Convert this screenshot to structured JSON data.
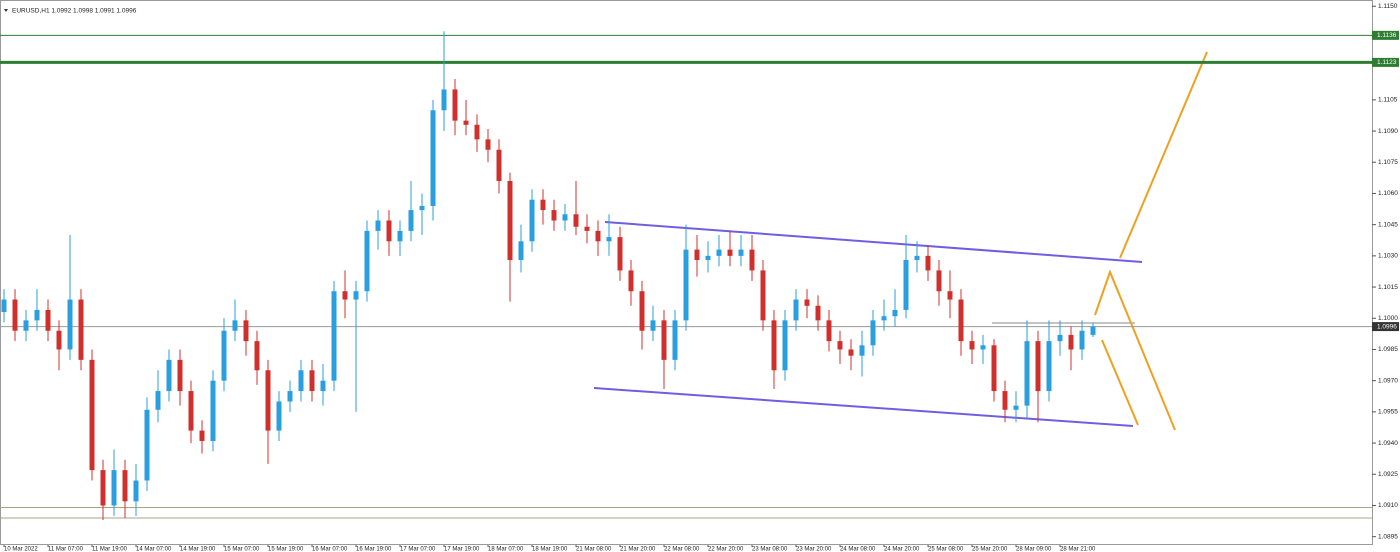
{
  "chart_data": {
    "type": "candlestick",
    "title": "EURUSD,H1  1.0992 1.0998 1.0991 1.0996",
    "categories": [
      "10 Mar 2022",
      null,
      null,
      null,
      "11 Mar 07:00",
      null,
      null,
      null,
      "11 Mar 19:00",
      null,
      null,
      null,
      "14 Mar 07:00",
      null,
      null,
      null,
      "14 Mar 19:00",
      null,
      null,
      null,
      "15 Mar 07:00",
      null,
      null,
      null,
      "15 Mar 19:00",
      null,
      null,
      null,
      "16 Mar 07:00",
      null,
      null,
      null,
      "16 Mar 19:00",
      null,
      null,
      null,
      "17 Mar 07:00",
      null,
      null,
      null,
      "17 Mar 19:00",
      null,
      null,
      null,
      "18 Mar 07:00",
      null,
      null,
      null,
      "18 Mar 19:00",
      null,
      null,
      null,
      "21 Mar 08:00",
      null,
      null,
      null,
      "21 Mar 20:00",
      null,
      null,
      null,
      "22 Mar 08:00",
      null,
      null,
      null,
      "22 Mar 20:00",
      null,
      null,
      null,
      "23 Mar 08:00",
      null,
      null,
      null,
      "23 Mar 20:00",
      null,
      null,
      null,
      "24 Mar 08:00",
      null,
      null,
      null,
      "24 Mar 20:00",
      null,
      null,
      null,
      "25 Mar 08:00",
      null,
      null,
      null,
      "25 Mar 20:00",
      null,
      null,
      null,
      "28 Mar 09:00",
      null,
      null,
      null,
      "28 Mar 21:00",
      null,
      null,
      null
    ],
    "open": [
      1.1003,
      1.1009,
      1.0994,
      1.0999,
      1.1004,
      1.0994,
      1.0985,
      1.1009,
      1.098,
      1.0927,
      1.091,
      1.0927,
      1.0912,
      1.0922,
      1.0956,
      1.0965,
      1.098,
      1.0965,
      1.0946,
      1.0941,
      1.097,
      1.0994,
      1.0999,
      1.0989,
      1.0975,
      1.0946,
      1.096,
      1.0965,
      1.0975,
      1.0965,
      1.097,
      1.1013,
      1.1009,
      1.1013,
      1.1042,
      1.1047,
      1.1037,
      1.1042,
      1.1052,
      1.1054,
      1.11,
      1.111,
      1.1095,
      1.1093,
      1.1086,
      1.1081,
      1.1066,
      1.1028,
      1.1037,
      1.1057,
      1.1052,
      1.1047,
      1.105,
      1.1044,
      1.1042,
      1.1037,
      1.1039,
      1.1023,
      1.1013,
      1.0994,
      1.0999,
      1.098,
      1.0999,
      1.1033,
      1.1028,
      1.103,
      1.1033,
      1.103,
      1.1033,
      1.1023,
      1.0999,
      1.0975,
      1.0999,
      1.1009,
      1.1006,
      1.0999,
      1.0989,
      1.0985,
      1.0982,
      1.0987,
      1.0999,
      1.1001,
      1.1004,
      1.1028,
      1.103,
      1.1023,
      1.1013,
      1.1009,
      1.0989,
      1.0985,
      1.0987,
      1.0965,
      1.0956,
      1.0958,
      1.0989,
      1.0965,
      1.0989,
      1.0992,
      1.0985,
      1.0992
    ],
    "high": [
      1.1014,
      1.1014,
      1.1004,
      1.1014,
      1.1009,
      1.0999,
      1.104,
      1.1014,
      1.0985,
      1.0932,
      1.0937,
      1.0932,
      1.093,
      1.0962,
      1.0975,
      1.0985,
      1.0985,
      1.097,
      1.0951,
      1.0975,
      1.1,
      1.1009,
      1.1004,
      1.0994,
      1.098,
      1.0965,
      1.097,
      1.098,
      1.098,
      1.0978,
      1.1018,
      1.1023,
      1.1018,
      1.1047,
      1.1052,
      1.1052,
      1.1047,
      1.1066,
      1.106,
      1.1105,
      1.1138,
      1.1115,
      1.1105,
      1.1098,
      1.1091,
      1.1086,
      1.107,
      1.1045,
      1.1062,
      1.1062,
      1.1057,
      1.1055,
      1.1066,
      1.105,
      1.1047,
      1.105,
      1.1044,
      1.1028,
      1.1018,
      1.1006,
      1.1004,
      1.1004,
      1.1045,
      1.104,
      1.1037,
      1.104,
      1.1042,
      1.104,
      1.104,
      1.1028,
      1.1004,
      1.1004,
      1.1014,
      1.1014,
      1.1011,
      1.1004,
      1.0994,
      1.099,
      1.0994,
      1.1004,
      1.1009,
      1.1014,
      1.104,
      1.1037,
      1.1035,
      1.1028,
      1.1023,
      1.1014,
      1.0994,
      1.0992,
      1.099,
      1.097,
      1.0965,
      1.0999,
      1.0994,
      1.0999,
      1.0999,
      1.0996,
      1.0999,
      1.0998
    ],
    "low": [
      1.0998,
      1.0989,
      1.0989,
      1.0994,
      1.0989,
      1.0975,
      1.098,
      1.0975,
      1.0922,
      1.0903,
      1.0905,
      1.0904,
      1.0905,
      1.0917,
      1.095,
      1.096,
      1.0958,
      1.094,
      1.0935,
      1.0936,
      1.0965,
      1.0989,
      1.0982,
      1.0968,
      1.093,
      1.0941,
      1.0955,
      1.096,
      1.096,
      1.0958,
      1.0965,
      1.1,
      1.0955,
      1.1008,
      1.1033,
      1.103,
      1.103,
      1.1037,
      1.104,
      1.1047,
      1.109,
      1.1088,
      1.1088,
      1.108,
      1.1075,
      1.106,
      1.1008,
      1.1022,
      1.1032,
      1.1045,
      1.1042,
      1.1042,
      1.104,
      1.1036,
      1.103,
      1.103,
      1.1018,
      1.1006,
      1.0985,
      1.0989,
      1.0966,
      1.0975,
      1.0994,
      1.102,
      1.1022,
      1.1025,
      1.1025,
      1.1025,
      1.1018,
      1.0994,
      1.0966,
      1.097,
      1.0994,
      1.1,
      1.0994,
      1.0984,
      1.0978,
      1.0975,
      1.0972,
      1.0982,
      1.0994,
      1.0996,
      1.1,
      1.1022,
      1.1018,
      1.1006,
      1.1,
      1.0982,
      1.0978,
      1.0978,
      1.096,
      1.095,
      1.095,
      1.0952,
      1.095,
      1.096,
      1.0982,
      1.0975,
      1.098,
      1.0991
    ],
    "close": [
      1.1009,
      1.0994,
      1.0999,
      1.1004,
      1.0994,
      1.0985,
      1.1009,
      1.098,
      1.0927,
      1.091,
      1.0927,
      1.0912,
      1.0922,
      1.0956,
      1.0965,
      1.098,
      1.0965,
      1.0946,
      1.0941,
      1.097,
      1.0994,
      1.0999,
      1.0989,
      1.0975,
      1.0946,
      1.096,
      1.0965,
      1.0975,
      1.0965,
      1.097,
      1.1013,
      1.1009,
      1.1013,
      1.1042,
      1.1047,
      1.1037,
      1.1042,
      1.1052,
      1.1054,
      1.11,
      1.111,
      1.1095,
      1.1093,
      1.1086,
      1.1081,
      1.1066,
      1.1028,
      1.1037,
      1.1057,
      1.1052,
      1.1047,
      1.105,
      1.1044,
      1.1042,
      1.1037,
      1.1039,
      1.1023,
      1.1013,
      1.0994,
      1.0999,
      1.098,
      1.0999,
      1.1033,
      1.1028,
      1.103,
      1.1033,
      1.103,
      1.1033,
      1.1023,
      1.0999,
      1.0975,
      1.0999,
      1.1009,
      1.1006,
      1.0999,
      1.0989,
      1.0985,
      1.0982,
      1.0987,
      1.0999,
      1.1001,
      1.1004,
      1.1028,
      1.103,
      1.1023,
      1.1013,
      1.1009,
      1.0989,
      1.0985,
      1.0987,
      1.0965,
      1.0956,
      1.0958,
      1.0989,
      1.0965,
      1.0989,
      1.0992,
      1.0985,
      1.0994,
      1.0996
    ],
    "up_color": "#2a9fe0",
    "down_color": "#d0302c",
    "ylim": [
      1.0891,
      1.1153
    ],
    "yticks": [
      {
        "value": 1.115,
        "label": "1.1150"
      },
      1.1105,
      {
        "value": 1.109,
        "label": "1.1090"
      },
      1.1075,
      {
        "value": 1.106,
        "label": "1.1060"
      },
      1.1045,
      {
        "value": 1.103,
        "label": "1.1030"
      },
      1.1015,
      {
        "value": 1.1,
        "label": "1.1000"
      },
      1.0985,
      {
        "value": 1.097,
        "label": "1.0970"
      },
      1.0955,
      {
        "value": 1.094,
        "label": "1.0940"
      },
      1.0925,
      {
        "value": 1.091,
        "label": "1.0910"
      },
      1.0895
    ],
    "grid": false,
    "levels": [
      {
        "value": 1.1136,
        "color": "#2e7d32",
        "width": 1
      },
      {
        "value": 1.1123,
        "color": "#2e7d32",
        "width": 3
      },
      {
        "value": 1.0996,
        "color": "#9a9a9a",
        "width": 1
      },
      {
        "value": 1.0909,
        "color": "#a8a488",
        "width": 1
      },
      {
        "value": 1.0904,
        "color": "#a8a488",
        "width": 1
      }
    ]
  }
}
